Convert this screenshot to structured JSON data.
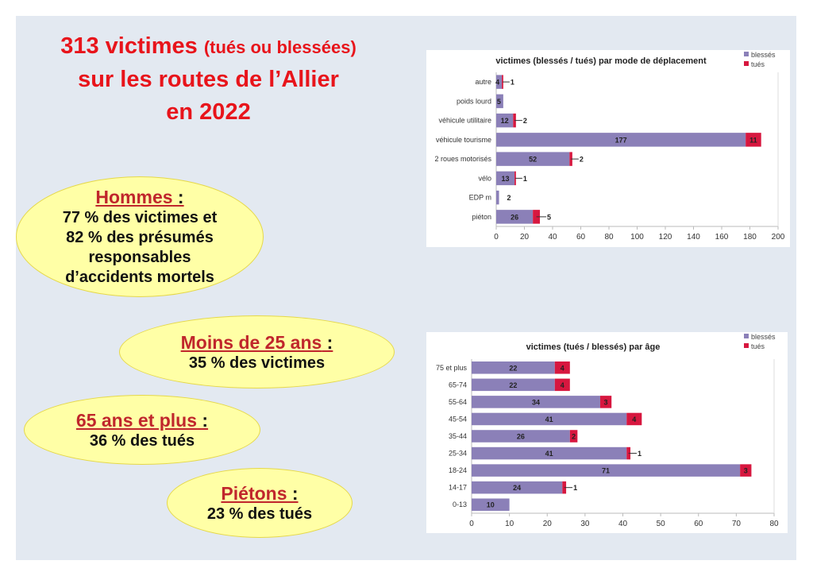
{
  "title": {
    "line1a": "313 victimes ",
    "line1b": "(tués ou blessées)",
    "line2": "sur les routes de l’Allier",
    "line3": "en 2022"
  },
  "facts": [
    {
      "heading": "Hommes",
      "colon": " :",
      "lines": [
        "77 % des victimes et",
        "82 % des présumés",
        "responsables",
        "d’accidents mortels"
      ]
    },
    {
      "heading": "Moins de 25 ans",
      "colon": " :",
      "lines": [
        "35 % des victimes"
      ]
    },
    {
      "heading": "65 ans et plus",
      "colon": " :",
      "lines": [
        "36 % des tués"
      ]
    },
    {
      "heading": "Piétons",
      "colon": " :",
      "lines": [
        "23 % des tués"
      ]
    }
  ],
  "colors": {
    "blesses": "#8b80b8",
    "tues": "#d7173f"
  },
  "chart_data": [
    {
      "type": "bar",
      "orientation": "horizontal",
      "stacked": true,
      "title": "victimes (blessés / tués) par mode de déplacement",
      "categories": [
        "autre",
        "poids lourd",
        "véhicule utilitaire",
        "véhicule tourisme",
        "2 roues motorisés",
        "vélo",
        "EDP m",
        "piéton"
      ],
      "series": [
        {
          "name": "blessés",
          "values": [
            4,
            5,
            12,
            177,
            52,
            13,
            2,
            26
          ]
        },
        {
          "name": "tués",
          "values": [
            1,
            0,
            2,
            11,
            2,
            1,
            0,
            5
          ]
        }
      ],
      "data_labels": [
        [
          "4",
          "5",
          "12",
          "177",
          "52",
          "13",
          "2",
          "26"
        ],
        [
          "1",
          "",
          "2",
          "11",
          "2",
          "1",
          "",
          "5"
        ]
      ],
      "xlim": [
        0,
        200
      ],
      "xticks": [
        0,
        20,
        40,
        60,
        80,
        100,
        120,
        140,
        160,
        180,
        200
      ],
      "legend": "top-right",
      "grid": false
    },
    {
      "type": "bar",
      "orientation": "horizontal",
      "stacked": true,
      "title": "victimes (tués / blessés) par âge",
      "categories": [
        "75 et plus",
        "65-74",
        "55-64",
        "45-54",
        "35-44",
        "25-34",
        "18-24",
        "14-17",
        "0-13"
      ],
      "series": [
        {
          "name": "blessés",
          "values": [
            22,
            22,
            34,
            41,
            26,
            41,
            71,
            24,
            10
          ]
        },
        {
          "name": "tués",
          "values": [
            4,
            4,
            3,
            4,
            2,
            1,
            3,
            1,
            0
          ]
        }
      ],
      "data_labels": [
        [
          "22",
          "22",
          "34",
          "41",
          "26",
          "41",
          "71",
          "24",
          "10"
        ],
        [
          "4",
          "4",
          "3",
          "4",
          "2",
          "1",
          "3",
          "1",
          ""
        ]
      ],
      "xlim": [
        0,
        80
      ],
      "xticks": [
        0,
        10,
        20,
        30,
        40,
        50,
        60,
        70,
        80
      ],
      "legend": "top-right",
      "grid": false
    }
  ]
}
